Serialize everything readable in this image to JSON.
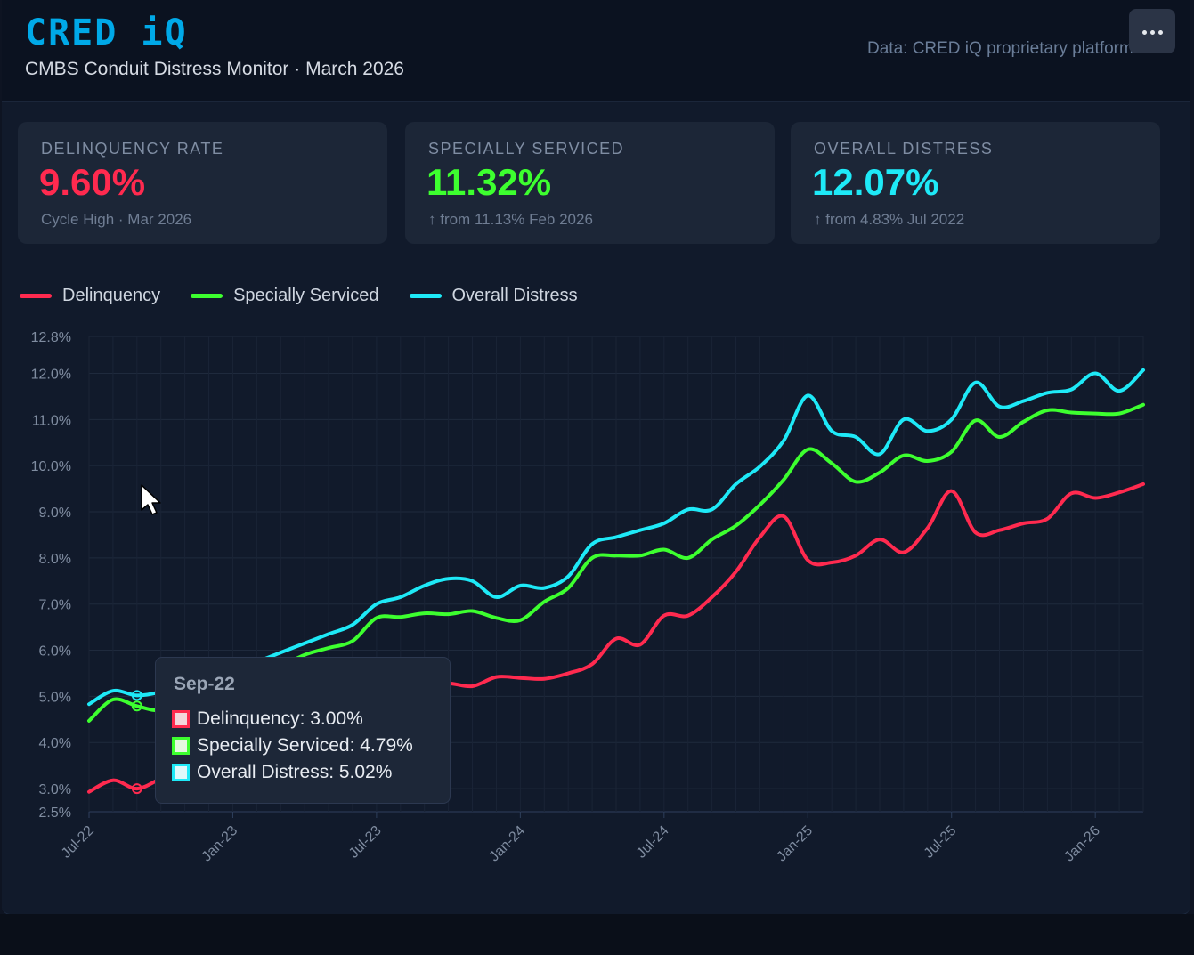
{
  "header": {
    "logo": "CRED iQ",
    "subtitle": "CMBS Conduit Distress Monitor · March 2026",
    "source": "Data: CRED iQ proprietary platform",
    "menu_icon": "more-horizontal-icon"
  },
  "kpis": [
    {
      "label": "DELINQUENCY RATE",
      "value": "9.60%",
      "sub": "Cycle High · Mar 2026",
      "color": "#ff2a4f"
    },
    {
      "label": "SPECIALLY SERVICED",
      "value": "11.32%",
      "sub": "↑ from 11.13% Feb 2026",
      "color": "#3dff2f"
    },
    {
      "label": "OVERALL DISTRESS",
      "value": "12.07%",
      "sub": "↑ from 4.83% Jul 2022",
      "color": "#1ee9f7"
    }
  ],
  "legend": [
    {
      "name": "Delinquency",
      "color": "#ff2a4f"
    },
    {
      "name": "Specially Serviced",
      "color": "#3dff2f"
    },
    {
      "name": "Overall Distress",
      "color": "#1ee9f7"
    }
  ],
  "tooltip": {
    "title": "Sep-22",
    "rows": [
      {
        "text": "Delinquency: 3.00%",
        "color": "#ff2a4f"
      },
      {
        "text": "Specially Serviced: 4.79%",
        "color": "#3dff2f"
      },
      {
        "text": "Overall Distress: 5.02%",
        "color": "#1ee9f7"
      }
    ]
  },
  "chart_data": {
    "type": "line",
    "title": "",
    "xlabel": "",
    "ylabel": "",
    "x": [
      "Jul-22",
      "Aug-22",
      "Sep-22",
      "Oct-22",
      "Nov-22",
      "Dec-22",
      "Jan-23",
      "Feb-23",
      "Mar-23",
      "Apr-23",
      "May-23",
      "Jun-23",
      "Jul-23",
      "Aug-23",
      "Sep-23",
      "Oct-23",
      "Nov-23",
      "Dec-23",
      "Jan-24",
      "Feb-24",
      "Mar-24",
      "Apr-24",
      "May-24",
      "Jun-24",
      "Jul-24",
      "Aug-24",
      "Sep-24",
      "Oct-24",
      "Nov-24",
      "Dec-24",
      "Jan-25",
      "Feb-25",
      "Mar-25",
      "Apr-25",
      "May-25",
      "Jun-25",
      "Jul-25",
      "Aug-25",
      "Sep-25",
      "Oct-25",
      "Nov-25",
      "Dec-25",
      "Jan-26",
      "Feb-26",
      "Mar-26"
    ],
    "x_tick_labels": [
      "Jul-22",
      "Jan-23",
      "Jul-23",
      "Jan-24",
      "Jul-24",
      "Jan-25",
      "Jul-25",
      "Jan-26"
    ],
    "y_ticks": [
      2.5,
      3.0,
      4.0,
      5.0,
      6.0,
      7.0,
      8.0,
      9.0,
      10.0,
      11.0,
      12.0,
      12.8
    ],
    "ylim": [
      2.5,
      12.8
    ],
    "grid": true,
    "legend_position": "top-left",
    "series": [
      {
        "name": "Delinquency",
        "color": "#ff2a4f",
        "values": [
          2.93,
          3.18,
          3.0,
          3.22,
          3.45,
          3.7,
          3.85,
          4.0,
          4.2,
          4.45,
          4.7,
          4.9,
          5.0,
          5.1,
          5.2,
          5.28,
          5.22,
          5.42,
          5.4,
          5.38,
          5.5,
          5.7,
          6.25,
          6.12,
          6.75,
          6.75,
          7.15,
          7.7,
          8.45,
          8.9,
          7.95,
          7.9,
          8.05,
          8.4,
          8.12,
          8.65,
          9.45,
          8.55,
          8.6,
          8.75,
          8.85,
          9.4,
          9.3,
          9.42,
          9.6
        ]
      },
      {
        "name": "Specially Serviced",
        "color": "#3dff2f",
        "values": [
          4.47,
          4.93,
          4.79,
          4.7,
          4.95,
          5.1,
          5.25,
          5.4,
          5.65,
          5.9,
          6.05,
          6.2,
          6.7,
          6.72,
          6.8,
          6.78,
          6.85,
          6.7,
          6.65,
          7.05,
          7.35,
          8.0,
          8.05,
          8.05,
          8.18,
          8.0,
          8.4,
          8.7,
          9.15,
          9.7,
          10.35,
          10.05,
          9.65,
          9.85,
          10.22,
          10.1,
          10.3,
          10.98,
          10.62,
          10.95,
          11.2,
          11.15,
          11.13,
          11.13,
          11.32
        ]
      },
      {
        "name": "Overall Distress",
        "color": "#1ee9f7",
        "values": [
          4.83,
          5.12,
          5.02,
          5.1,
          5.3,
          5.45,
          5.6,
          5.75,
          5.95,
          6.15,
          6.35,
          6.55,
          7.0,
          7.15,
          7.4,
          7.55,
          7.5,
          7.15,
          7.4,
          7.35,
          7.6,
          8.3,
          8.45,
          8.6,
          8.75,
          9.05,
          9.05,
          9.6,
          9.98,
          10.55,
          11.52,
          10.75,
          10.62,
          10.25,
          11.0,
          10.75,
          11.0,
          11.8,
          11.28,
          11.4,
          11.58,
          11.65,
          12.0,
          11.62,
          12.07
        ]
      }
    ]
  }
}
